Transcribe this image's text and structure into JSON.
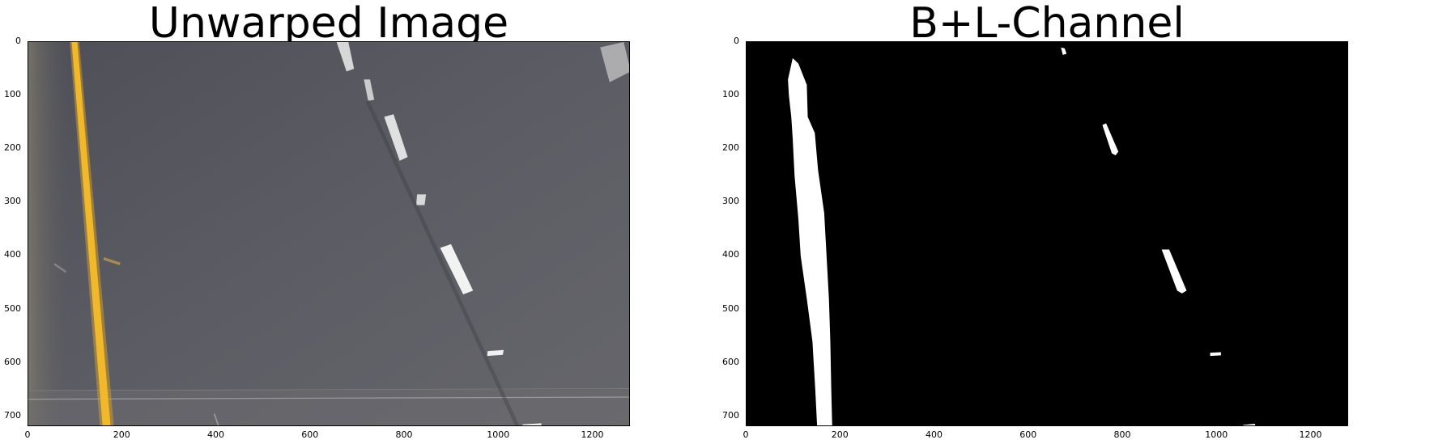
{
  "panels": [
    {
      "title": "Unwarped Image",
      "y_ticks": [
        "0",
        "100",
        "200",
        "300",
        "400",
        "500",
        "600",
        "700"
      ],
      "x_ticks": [
        "0",
        "200",
        "400",
        "600",
        "800",
        "1000",
        "1200"
      ]
    },
    {
      "title": "B+L-Channel",
      "y_ticks": [
        "0",
        "100",
        "200",
        "300",
        "400",
        "500",
        "600",
        "700"
      ],
      "x_ticks": [
        "0",
        "200",
        "400",
        "600",
        "800",
        "1000",
        "1200"
      ]
    }
  ],
  "image_width": 1280,
  "image_height": 720,
  "colors": {
    "road": "#5a5a62",
    "yellow_line": "#e6b020",
    "mask_background": "#000000",
    "mask_foreground": "#ffffff"
  }
}
